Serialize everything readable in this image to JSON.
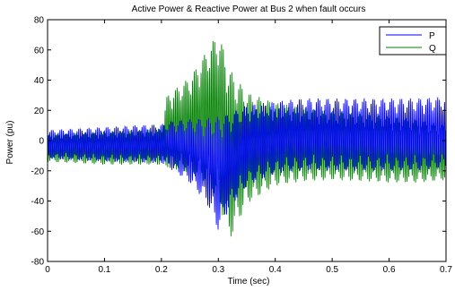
{
  "chart_data": {
    "type": "line",
    "title": "Active Power & Reactive Power at Bus 2 when fault occurs",
    "xlabel": "Time (sec)",
    "ylabel": "Power (pu)",
    "xlim": [
      0,
      0.7
    ],
    "ylim": [
      -80,
      80
    ],
    "xticks": [
      0,
      0.1,
      0.2,
      0.3,
      0.4,
      0.5,
      0.6,
      0.7
    ],
    "yticks": [
      -80,
      -60,
      -40,
      -20,
      0,
      20,
      40,
      60,
      80
    ],
    "xtick_labels": [
      "0",
      "0.1",
      "0.2",
      "0.3",
      "0.4",
      "0.5",
      "0.6",
      "0.7"
    ],
    "ytick_labels": [
      "-80",
      "-60",
      "-40",
      "-20",
      "0",
      "20",
      "40",
      "60",
      "80"
    ],
    "grid": false,
    "legend": "top-right",
    "series": [
      {
        "name": "P",
        "color": "#0000ff",
        "envelope": {
          "t": [
            0,
            0.1,
            0.2,
            0.22,
            0.25,
            0.28,
            0.3,
            0.32,
            0.35,
            0.4,
            0.45,
            0.5,
            0.55,
            0.6,
            0.65,
            0.7
          ],
          "max": [
            7,
            9,
            11,
            13,
            14,
            15,
            16,
            18,
            24,
            26,
            28,
            28,
            28,
            28,
            28,
            29
          ],
          "min": [
            -12,
            -14,
            -15,
            -20,
            -28,
            -42,
            -60,
            -45,
            -30,
            -22,
            -20,
            -20,
            -20,
            -20,
            -20,
            -18
          ]
        }
      },
      {
        "name": "Q",
        "color": "#008000",
        "envelope": {
          "t": [
            0,
            0.1,
            0.2,
            0.21,
            0.25,
            0.28,
            0.3,
            0.32,
            0.35,
            0.4,
            0.45,
            0.5,
            0.55,
            0.6,
            0.65,
            0.7
          ],
          "max": [
            4,
            6,
            8,
            30,
            42,
            60,
            73,
            48,
            32,
            25,
            22,
            20,
            18,
            16,
            14,
            10
          ],
          "min": [
            -14,
            -16,
            -16,
            -18,
            -22,
            -28,
            -40,
            -66,
            -42,
            -30,
            -27,
            -26,
            -27,
            -28,
            -28,
            -26
          ]
        }
      }
    ]
  }
}
